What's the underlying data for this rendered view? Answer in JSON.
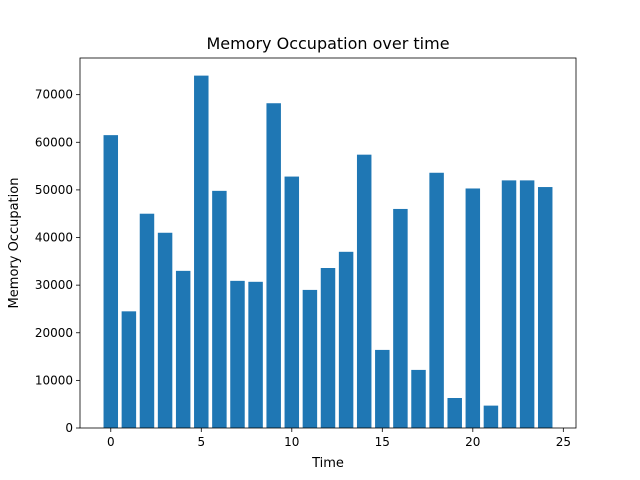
{
  "chart_data": {
    "type": "bar",
    "title": "Memory Occupation over time",
    "xlabel": "Time",
    "ylabel": "Memory Occupation",
    "x": [
      0,
      1,
      2,
      3,
      4,
      5,
      6,
      7,
      8,
      9,
      10,
      11,
      12,
      13,
      14,
      15,
      16,
      17,
      18,
      19,
      20,
      21,
      22,
      23,
      24
    ],
    "values": [
      61500,
      24500,
      45000,
      41000,
      33000,
      74000,
      49800,
      30900,
      30700,
      68200,
      52800,
      29000,
      33600,
      37000,
      57400,
      16400,
      46000,
      12200,
      53600,
      6300,
      50300,
      4700,
      52000,
      52000,
      50600
    ],
    "xlim": [
      -1.7,
      25.7
    ],
    "ylim": [
      0,
      77700
    ],
    "xticks": [
      0,
      5,
      10,
      15,
      20,
      25
    ],
    "yticks": [
      0,
      10000,
      20000,
      30000,
      40000,
      50000,
      60000,
      70000
    ],
    "bar_color": "#1f77b4",
    "grid": false
  }
}
